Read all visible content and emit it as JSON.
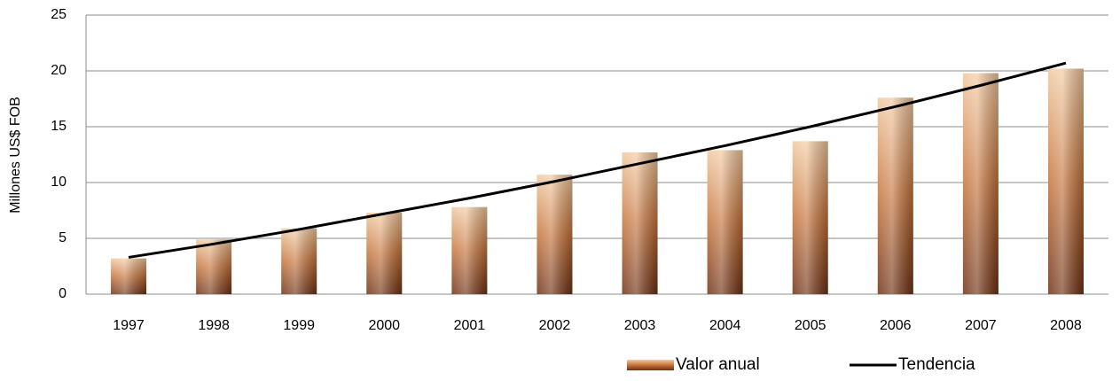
{
  "chart_data": {
    "type": "bar",
    "y_label": "Millones US$ FOB",
    "categories": [
      "1997",
      "1998",
      "1999",
      "2000",
      "2001",
      "2002",
      "2003",
      "2004",
      "2005",
      "2006",
      "2007",
      "2008"
    ],
    "series": [
      {
        "name": "Valor anual",
        "type": "bar",
        "color": "#b8622e",
        "values": [
          3.2,
          4.9,
          5.9,
          7.3,
          7.8,
          10.7,
          12.7,
          12.9,
          13.7,
          17.6,
          19.8,
          20.2
        ]
      },
      {
        "name": "Tendencia",
        "type": "line",
        "color": "#000000",
        "values": [
          3.3,
          4.5,
          5.8,
          7.2,
          8.6,
          10.1,
          11.7,
          13.3,
          15.0,
          16.8,
          18.7,
          20.7
        ]
      }
    ],
    "ylim": [
      0,
      25
    ],
    "yticks": [
      0,
      5,
      10,
      15,
      20,
      25
    ],
    "grid": true,
    "legend": "bottom"
  }
}
